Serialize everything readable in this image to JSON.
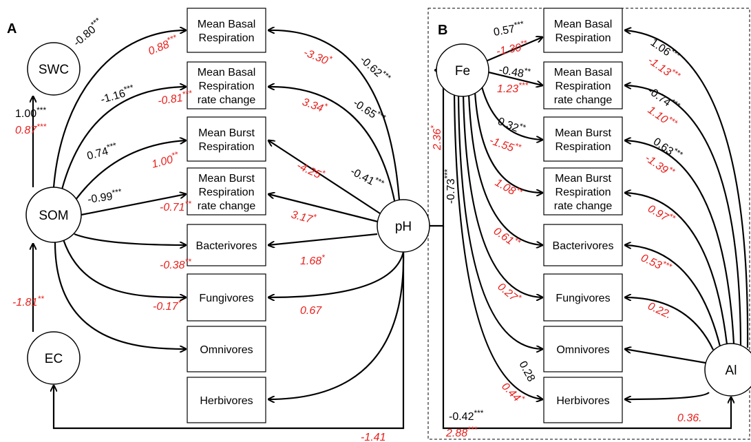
{
  "panels": [
    {
      "label": "A",
      "nodes": [
        "SWC",
        "SOM",
        "EC",
        "pH"
      ],
      "boxes": [
        [
          "Mean Basal",
          "Respiration"
        ],
        [
          "Mean Basal",
          "Respiration",
          "rate change"
        ],
        [
          "Mean Burst",
          "Respiration"
        ],
        [
          "Mean Burst",
          "Respiration",
          "rate change"
        ],
        [
          "Bacterivores"
        ],
        [
          "Fungivores"
        ],
        [
          "Omnivores"
        ],
        [
          "Herbivores"
        ]
      ],
      "coefficients": [
        {
          "coef": "-0.80",
          "sig": "***",
          "color": "#000000"
        },
        {
          "coef": "0.88",
          "sig": "***",
          "color": "#e8201c"
        },
        {
          "coef": "-3.30",
          "sig": "*",
          "color": "#e8201c"
        },
        {
          "coef": "-0.62",
          "sig": "***",
          "color": "#000000"
        },
        {
          "coef": "-1.16",
          "sig": "***",
          "color": "#000000"
        },
        {
          "coef": "-0.81",
          "sig": "***",
          "color": "#e8201c"
        },
        {
          "coef": "3.34",
          "sig": "*",
          "color": "#e8201c"
        },
        {
          "coef": "-0.65",
          "sig": "***",
          "color": "#000000"
        },
        {
          "coef": "1.00",
          "sig": "***",
          "color": "#000000"
        },
        {
          "coef": "0.87",
          "sig": "***",
          "color": "#e8201c"
        },
        {
          "coef": "0.74",
          "sig": "***",
          "color": "#000000"
        },
        {
          "coef": "1.00",
          "sig": "**",
          "color": "#e8201c"
        },
        {
          "coef": "-4.25",
          "sig": "*",
          "color": "#e8201c"
        },
        {
          "coef": "-0.41",
          "sig": "***",
          "color": "#000000"
        },
        {
          "coef": "-0.99",
          "sig": "***",
          "color": "#000000"
        },
        {
          "coef": "-0.71",
          "sig": "**",
          "color": "#e8201c"
        },
        {
          "coef": "3.17",
          "sig": "*",
          "color": "#e8201c"
        },
        {
          "coef": "-0.38",
          "sig": "**",
          "color": "#e8201c"
        },
        {
          "coef": "1.68",
          "sig": "*",
          "color": "#e8201c"
        },
        {
          "coef": "-0.17",
          "sig": "*",
          "color": "#e8201c"
        },
        {
          "coef": "0.67",
          "color": "#e8201c"
        },
        {
          "coef": "-1.81",
          "sig": "**",
          "color": "#e8201c"
        },
        {
          "coef": "-1.41",
          "color": "#e8201c"
        }
      ]
    },
    {
      "label": "B",
      "nodes": [
        "Fe",
        "Al"
      ],
      "boxes": [
        [
          "Mean Basal",
          "Respiration"
        ],
        [
          "Mean Basal",
          "Respiration",
          "rate change"
        ],
        [
          "Mean Burst",
          "Respiration"
        ],
        [
          "Mean Burst",
          "Respiration",
          "rate change"
        ],
        [
          "Bacterivores"
        ],
        [
          "Fungivores"
        ],
        [
          "Omnivores"
        ],
        [
          "Herbivores"
        ]
      ],
      "coefficients": [
        {
          "coef": "0.57",
          "sig": "***",
          "color": "#000000"
        },
        {
          "coef": "-1.30",
          "sig": "**",
          "color": "#e8201c"
        },
        {
          "coef": "-0.48",
          "sig": "**",
          "color": "#000000"
        },
        {
          "coef": "1.23",
          "sig": "***",
          "color": "#e8201c"
        },
        {
          "coef": "1.06",
          "sig": "***",
          "color": "#000000"
        },
        {
          "coef": "-1.13",
          "sig": "***",
          "color": "#e8201c"
        },
        {
          "coef": "-0.74",
          "sig": "***",
          "color": "#000000"
        },
        {
          "coef": "1.10",
          "sig": "***",
          "color": "#e8201c"
        },
        {
          "coef": "0.32",
          "sig": "**",
          "color": "#000000"
        },
        {
          "coef": "-1.55",
          "sig": "**",
          "color": "#e8201c"
        },
        {
          "coef": "0.63",
          "sig": "***",
          "color": "#000000"
        },
        {
          "coef": "-1.39",
          "sig": "**",
          "color": "#e8201c"
        },
        {
          "coef": "2.36",
          "sig": "*",
          "color": "#e8201c"
        },
        {
          "coef": "-0.73",
          "sig": "***",
          "color": "#000000"
        },
        {
          "coef": "1.08",
          "sig": "**",
          "color": "#e8201c"
        },
        {
          "coef": "0.97",
          "sig": "**",
          "color": "#e8201c"
        },
        {
          "coef": "0.61",
          "sig": "**",
          "color": "#e8201c"
        },
        {
          "coef": "0.53",
          "sig": "***",
          "color": "#e8201c"
        },
        {
          "coef": "0.27",
          "sig": "*",
          "color": "#e8201c"
        },
        {
          "coef": "0.22.",
          "color": "#e8201c"
        },
        {
          "coef": "0.28",
          "color": "#000000"
        },
        {
          "coef": "0.44",
          "sig": "*",
          "color": "#e8201c"
        },
        {
          "coef": "-0.42",
          "sig": "***",
          "color": "#000000"
        },
        {
          "coef": "0.36.",
          "color": "#e8201c"
        },
        {
          "coef": "2.88",
          "sig": "***",
          "color": "#e8201c"
        }
      ]
    }
  ]
}
